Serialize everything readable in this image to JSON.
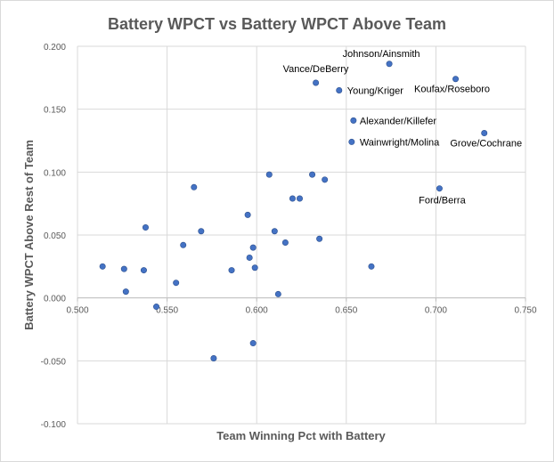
{
  "chart_data": {
    "type": "scatter",
    "title": "Battery WPCT vs Battery WPCT Above Team",
    "xlabel": "Team Winning Pct with Battery",
    "ylabel": "Battery WPCT Above Rest of Team",
    "xlim": [
      0.5,
      0.75
    ],
    "ylim": [
      -0.1,
      0.2
    ],
    "x_ticks": [
      "0.500",
      "0.550",
      "0.600",
      "0.650",
      "0.700",
      "0.750"
    ],
    "y_ticks": [
      "-0.100",
      "-0.050",
      "0.000",
      "0.050",
      "0.100",
      "0.150",
      "0.200"
    ],
    "grid": "vertical and horizontal major gridlines",
    "marker_color": "#4472c4",
    "points": [
      {
        "x": 0.514,
        "y": 0.025
      },
      {
        "x": 0.526,
        "y": 0.023
      },
      {
        "x": 0.527,
        "y": 0.005
      },
      {
        "x": 0.537,
        "y": 0.022
      },
      {
        "x": 0.538,
        "y": 0.056
      },
      {
        "x": 0.544,
        "y": -0.007
      },
      {
        "x": 0.555,
        "y": 0.012
      },
      {
        "x": 0.559,
        "y": 0.042
      },
      {
        "x": 0.565,
        "y": 0.088
      },
      {
        "x": 0.569,
        "y": 0.053
      },
      {
        "x": 0.576,
        "y": -0.048
      },
      {
        "x": 0.586,
        "y": 0.022
      },
      {
        "x": 0.595,
        "y": 0.066
      },
      {
        "x": 0.596,
        "y": 0.032
      },
      {
        "x": 0.598,
        "y": 0.04
      },
      {
        "x": 0.598,
        "y": -0.036
      },
      {
        "x": 0.599,
        "y": 0.024
      },
      {
        "x": 0.607,
        "y": 0.098
      },
      {
        "x": 0.61,
        "y": 0.053
      },
      {
        "x": 0.612,
        "y": 0.003
      },
      {
        "x": 0.616,
        "y": 0.044
      },
      {
        "x": 0.62,
        "y": 0.079
      },
      {
        "x": 0.624,
        "y": 0.079
      },
      {
        "x": 0.631,
        "y": 0.098
      },
      {
        "x": 0.635,
        "y": 0.047
      },
      {
        "x": 0.638,
        "y": 0.094
      },
      {
        "x": 0.664,
        "y": 0.025
      },
      {
        "x": 0.633,
        "y": 0.171,
        "label": "Vance/DeBerry"
      },
      {
        "x": 0.646,
        "y": 0.165,
        "label": "Young/Kriger"
      },
      {
        "x": 0.674,
        "y": 0.186,
        "label": "Johnson/Ainsmith"
      },
      {
        "x": 0.711,
        "y": 0.174,
        "label": "Koufax/Roseboro"
      },
      {
        "x": 0.654,
        "y": 0.141,
        "label": "Alexander/Killefer"
      },
      {
        "x": 0.653,
        "y": 0.124,
        "label": "Wainwright/Molina"
      },
      {
        "x": 0.727,
        "y": 0.131,
        "label": "Grove/Cochrane"
      },
      {
        "x": 0.702,
        "y": 0.087,
        "label": "Ford/Berra"
      }
    ]
  }
}
